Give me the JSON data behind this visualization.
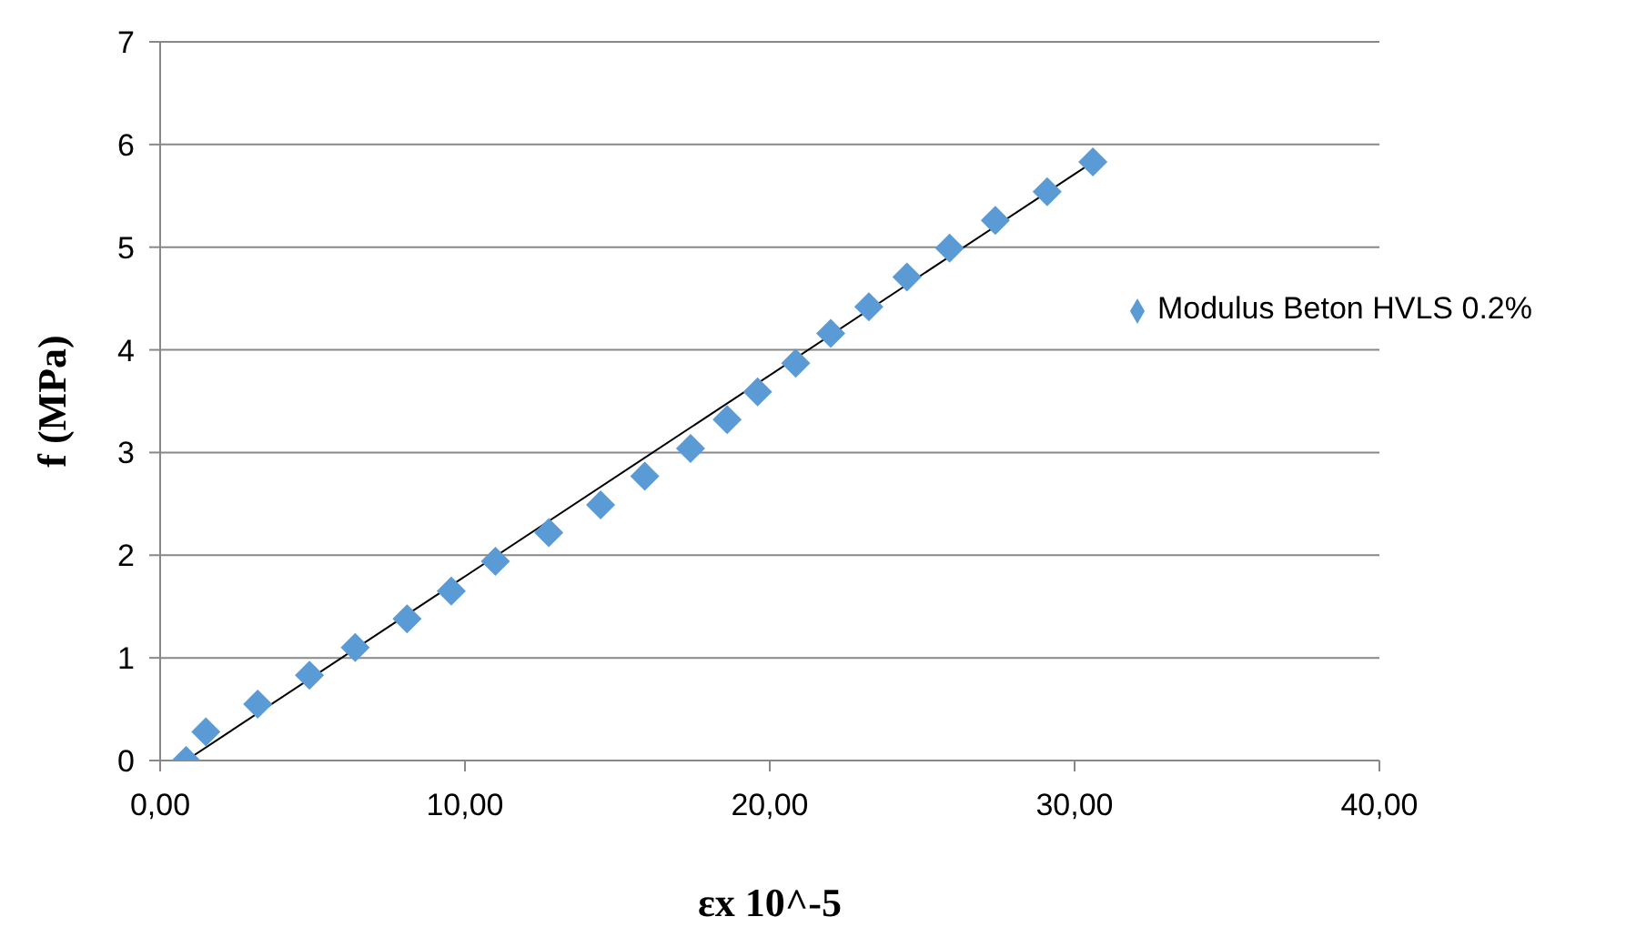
{
  "chart_data": {
    "type": "scatter",
    "xlabel": "εx 10^-5",
    "ylabel": "f (MPa)",
    "xlim": [
      0,
      40
    ],
    "xticks": [
      {
        "value": 0,
        "label": "0,00"
      },
      {
        "value": 10,
        "label": "10,00"
      },
      {
        "value": 20,
        "label": "20,00"
      },
      {
        "value": 30,
        "label": "30,00"
      },
      {
        "value": 40,
        "label": "40,00"
      }
    ],
    "ylim": [
      0,
      7
    ],
    "yticks": [
      0,
      1,
      2,
      3,
      4,
      5,
      6,
      7
    ],
    "grid": "y",
    "legend": "right",
    "series": [
      {
        "name": "Modulus Beton HVLS 0.2%",
        "color": "#5b9bd5",
        "marker": "diamond",
        "x": [
          0.85,
          1.5,
          3.2,
          4.9,
          6.4,
          8.1,
          9.55,
          11.0,
          12.75,
          14.45,
          15.9,
          17.4,
          18.6,
          19.6,
          20.85,
          22.0,
          23.25,
          24.5,
          25.9,
          27.4,
          29.1,
          30.6
        ],
        "values": [
          0,
          0.28,
          0.55,
          0.83,
          1.1,
          1.38,
          1.65,
          1.94,
          2.22,
          2.49,
          2.77,
          3.04,
          3.32,
          3.59,
          3.87,
          4.16,
          4.42,
          4.71,
          4.99,
          5.26,
          5.54,
          5.83
        ]
      },
      {
        "type": "line",
        "color": "#000000",
        "x": [
          0.85,
          30.6
        ],
        "values": [
          0,
          5.83
        ]
      }
    ]
  }
}
